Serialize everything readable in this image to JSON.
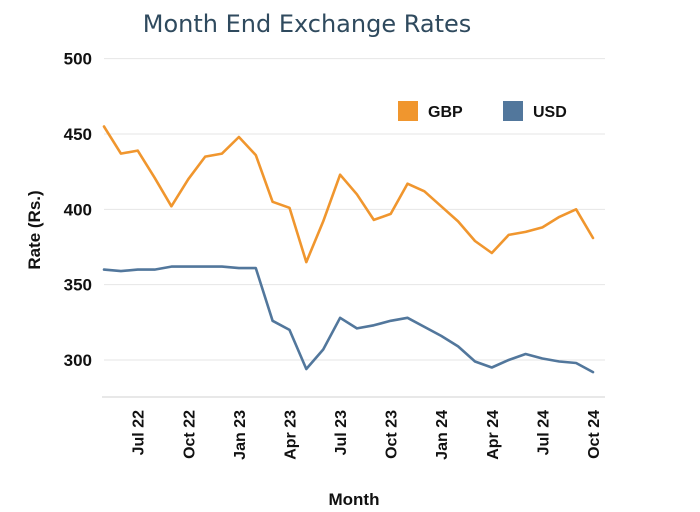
{
  "chart_data": {
    "type": "line",
    "title": "Month End Exchange Rates",
    "xlabel": "Month",
    "ylabel": "Rate (Rs.)",
    "ylim": [
      275,
      500
    ],
    "yticks": [
      300,
      350,
      400,
      450,
      500
    ],
    "grid": true,
    "legend_position": "top-right",
    "x": [
      "May 22",
      "Jun 22",
      "Jul 22",
      "Aug 22",
      "Sep 22",
      "Oct 22",
      "Nov 22",
      "Dec 22",
      "Jan 23",
      "Feb 23",
      "Mar 23",
      "Apr 23",
      "May 23",
      "Jun 23",
      "Jul 23",
      "Aug 23",
      "Sep 23",
      "Oct 23",
      "Nov 23",
      "Dec 23",
      "Jan 24",
      "Feb 24",
      "Mar 24",
      "Apr 24",
      "May 24",
      "Jun 24",
      "Jul 24",
      "Aug 24",
      "Sep 24",
      "Oct 24"
    ],
    "x_tick_labels": [
      "Jul 22",
      "Oct 22",
      "Jan 23",
      "Apr 23",
      "Jul 23",
      "Oct 23",
      "Jan 24",
      "Apr 24",
      "Jul 24",
      "Oct 24"
    ],
    "series": [
      {
        "name": "GBP",
        "color": "#f0962e",
        "values": [
          455,
          437,
          439,
          421,
          402,
          420,
          435,
          437,
          448,
          436,
          405,
          401,
          365,
          392,
          423,
          410,
          393,
          397,
          417,
          412,
          402,
          392,
          379,
          371,
          383,
          385,
          388,
          395,
          400,
          381
        ]
      },
      {
        "name": "USD",
        "color": "#52779c",
        "values": [
          360,
          359,
          360,
          360,
          362,
          362,
          362,
          362,
          361,
          361,
          326,
          320,
          294,
          307,
          328,
          321,
          323,
          326,
          328,
          322,
          316,
          309,
          299,
          295,
          300,
          304,
          301,
          299,
          298,
          292
        ]
      }
    ]
  }
}
